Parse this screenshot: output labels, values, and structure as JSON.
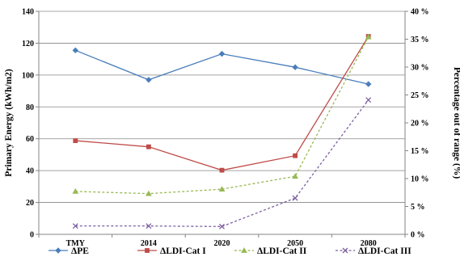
{
  "chart_data": {
    "type": "line",
    "categories": [
      "TMY",
      "2014",
      "2020",
      "2050",
      "2080"
    ],
    "ylabel": "Primary Energy (kWh/m2)",
    "y2label": "Percentage out of range (%)",
    "ylim": [
      0,
      140
    ],
    "y_ticks": [
      "0",
      "20",
      "40",
      "60",
      "80",
      "100",
      "120",
      "140"
    ],
    "y2lim": [
      0,
      40
    ],
    "y2_ticks": [
      "0 %",
      "5 %",
      "10 %",
      "15 %",
      "20 %",
      "25 %",
      "30 %",
      "35 %",
      "40 %"
    ],
    "grid": true,
    "legend_position": "bottom",
    "series": [
      {
        "name": "ΔPE",
        "axis": "left",
        "values": [
          115.5,
          97,
          113.3,
          104.9,
          94.3
        ],
        "color": "#4a7ebb",
        "dash": "solid",
        "marker": "diamond"
      },
      {
        "name": "ΔLDI-Cat I",
        "axis": "right",
        "values": [
          16.8,
          15.7,
          11.5,
          14.1,
          35.5
        ],
        "color": "#be4b48",
        "dash": "solid",
        "marker": "square"
      },
      {
        "name": "ΔLDI-Cat II",
        "axis": "right",
        "values": [
          7.7,
          7.3,
          8.1,
          10.4,
          35.4
        ],
        "color": "#98b954",
        "dash": "dashed",
        "marker": "triangle"
      },
      {
        "name": "ΔLDI-Cat III",
        "axis": "right",
        "values": [
          1.5,
          1.5,
          1.4,
          6.5,
          24.1
        ],
        "color": "#7d60a0",
        "dash": "dashed",
        "marker": "x"
      }
    ]
  }
}
